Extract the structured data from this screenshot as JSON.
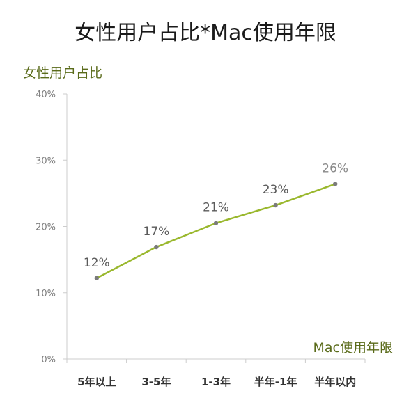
{
  "chart_data": {
    "type": "line",
    "title": "女性用户占比*Mac使用年限",
    "xlabel": "Mac使用年限",
    "ylabel": "女性用户占比",
    "categories": [
      "5年以上",
      "3-5年",
      "1-3年",
      "半年-1年",
      "半年以内"
    ],
    "series": [
      {
        "values": [
          12.2,
          16.9,
          20.5,
          23.2,
          26.4
        ],
        "labels": [
          "12%",
          "17%",
          "21%",
          "23%",
          "26%"
        ]
      }
    ],
    "ylim": [
      0,
      40
    ],
    "yticks": [
      0,
      10,
      20,
      30,
      40
    ],
    "ytick_labels": [
      "0%",
      "10%",
      "20%",
      "30%",
      "40%"
    ],
    "grid": false,
    "legend": "none"
  },
  "colors": {
    "line": "#9ab82e",
    "marker": "#7b7b7b",
    "axis": "#cccccc",
    "axis_title": "#5a6b1a",
    "data_label": "#5a5a5a",
    "tick_label": "#7f7f7f"
  }
}
